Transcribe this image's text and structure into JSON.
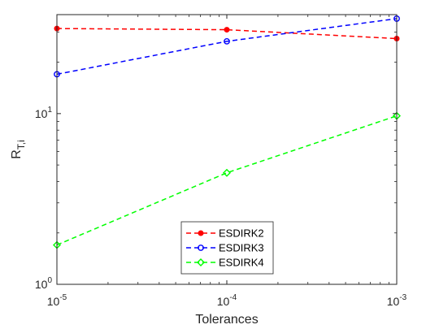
{
  "chart_data": {
    "type": "line",
    "xscale": "log",
    "yscale": "log",
    "x": [
      1e-05,
      0.0001,
      0.001
    ],
    "xlim": [
      1e-05,
      0.001
    ],
    "ylim": [
      1,
      38
    ],
    "xticks": [
      {
        "value": 1e-05,
        "base": "10",
        "exp": "-5"
      },
      {
        "value": 0.0001,
        "base": "10",
        "exp": "-4"
      },
      {
        "value": 0.001,
        "base": "10",
        "exp": "-3"
      }
    ],
    "yticks": [
      {
        "value": 1,
        "base": "10",
        "exp": "0"
      },
      {
        "value": 10,
        "base": "10",
        "exp": "1"
      }
    ],
    "xlabel": "Tolerances",
    "ylabel_main": "R",
    "ylabel_sub": "T,i",
    "grid": false,
    "legend_placement": "bottom-center",
    "series": [
      {
        "name": "ESDIRK2",
        "color": "#ff0000",
        "marker": "filled-circle",
        "values": [
          31.5,
          31.0,
          27.5
        ]
      },
      {
        "name": "ESDIRK3",
        "color": "#0000ff",
        "marker": "open-circle",
        "values": [
          17.0,
          26.5,
          36.0
        ]
      },
      {
        "name": "ESDIRK4",
        "color": "#00ff00",
        "marker": "diamond",
        "values": [
          1.7,
          4.5,
          9.7
        ]
      }
    ]
  }
}
